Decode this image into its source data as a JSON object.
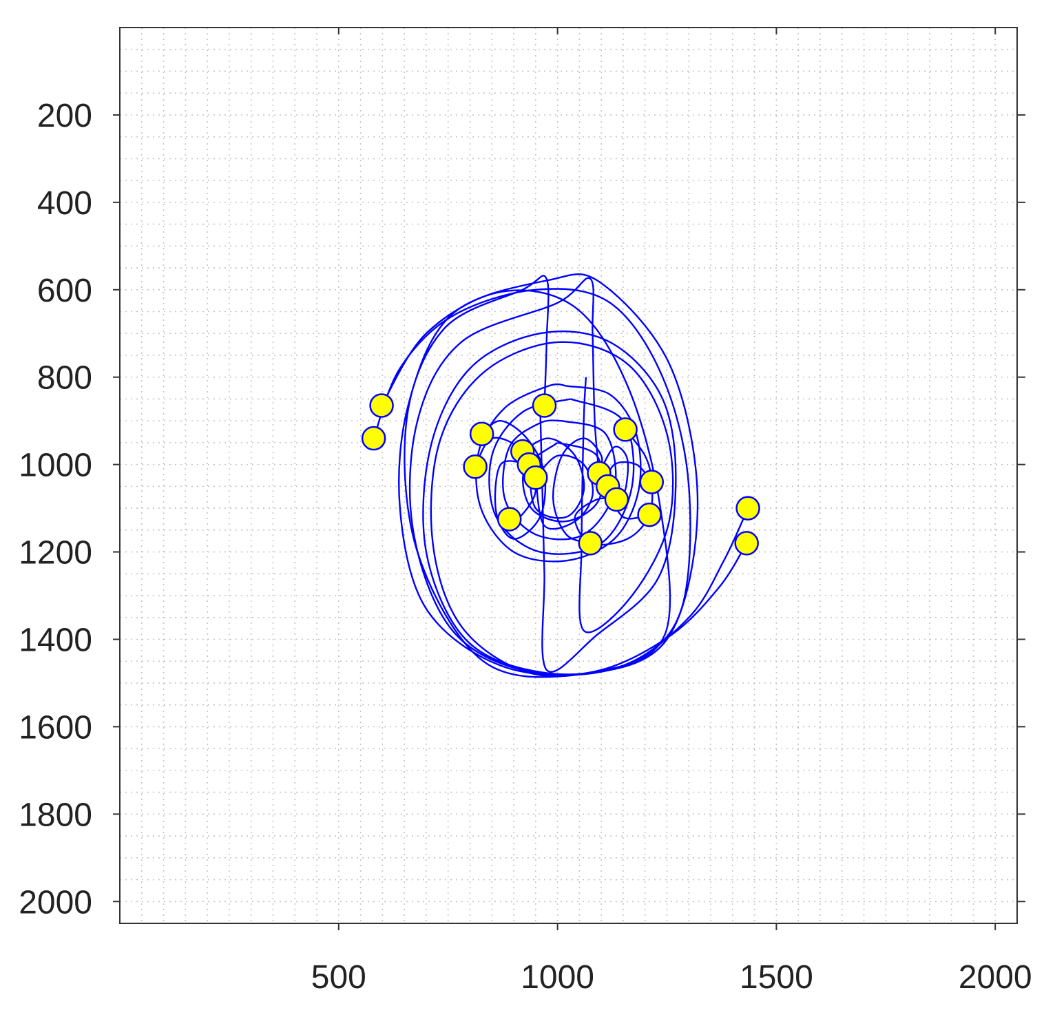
{
  "chart_data": {
    "type": "scatter",
    "title": "",
    "xlabel": "",
    "ylabel": "",
    "xlim": [
      0,
      2050
    ],
    "ylim": [
      2050,
      0
    ],
    "y_inverted": true,
    "grid": "dotted",
    "grid_step": 50,
    "xticks": [
      500,
      1000,
      1500,
      2000
    ],
    "yticks": [
      200,
      400,
      600,
      800,
      1000,
      1200,
      1400,
      1600,
      1800,
      2000
    ],
    "colors": {
      "particle_fill": "#ffff00",
      "particle_edge": "#0000ff",
      "trail": "#0000ff"
    },
    "points": [
      {
        "x": 598,
        "y": 865
      },
      {
        "x": 580,
        "y": 940
      },
      {
        "x": 827,
        "y": 930
      },
      {
        "x": 812,
        "y": 1005
      },
      {
        "x": 970,
        "y": 865
      },
      {
        "x": 1155,
        "y": 920
      },
      {
        "x": 920,
        "y": 970
      },
      {
        "x": 935,
        "y": 1000
      },
      {
        "x": 950,
        "y": 1030
      },
      {
        "x": 1095,
        "y": 1020
      },
      {
        "x": 1115,
        "y": 1050
      },
      {
        "x": 1135,
        "y": 1080
      },
      {
        "x": 1215,
        "y": 1040
      },
      {
        "x": 1210,
        "y": 1115
      },
      {
        "x": 890,
        "y": 1125
      },
      {
        "x": 1075,
        "y": 1180
      },
      {
        "x": 1435,
        "y": 1100
      },
      {
        "x": 1432,
        "y": 1180
      }
    ],
    "trajectories": [
      [
        [
          598,
          865
        ],
        [
          700,
          700
        ],
        [
          870,
          605
        ],
        [
          1040,
          640
        ],
        [
          1160,
          820
        ],
        [
          1235,
          1100
        ],
        [
          1245,
          1390
        ],
        [
          1080,
          1475
        ],
        [
          870,
          1460
        ],
        [
          700,
          1330
        ],
        [
          640,
          1100
        ],
        [
          660,
          860
        ],
        [
          760,
          655
        ],
        [
          980,
          578
        ],
        [
          1100,
          585
        ],
        [
          1260,
          780
        ],
        [
          1320,
          1100
        ],
        [
          1250,
          1400
        ],
        [
          1050,
          1480
        ],
        [
          830,
          1450
        ],
        [
          680,
          1200
        ],
        [
          655,
          900
        ],
        [
          740,
          690
        ],
        [
          920,
          600
        ],
        [
          975,
          575
        ],
        [
          975,
          720
        ],
        [
          970,
          865
        ]
      ],
      [
        [
          580,
          940
        ],
        [
          640,
          780
        ],
        [
          760,
          660
        ],
        [
          950,
          600
        ],
        [
          1120,
          630
        ],
        [
          1240,
          800
        ],
        [
          1300,
          1050
        ],
        [
          1280,
          1340
        ],
        [
          1150,
          1460
        ],
        [
          940,
          1475
        ],
        [
          760,
          1380
        ],
        [
          670,
          1150
        ],
        [
          680,
          900
        ],
        [
          780,
          720
        ],
        [
          1000,
          630
        ],
        [
          1075,
          575
        ],
        [
          1080,
          700
        ],
        [
          1085,
          900
        ],
        [
          1095,
          1020
        ]
      ],
      [
        [
          1435,
          1100
        ],
        [
          1380,
          1220
        ],
        [
          1300,
          1350
        ],
        [
          1150,
          1460
        ],
        [
          960,
          1475
        ],
        [
          790,
          1400
        ],
        [
          700,
          1200
        ],
        [
          710,
          960
        ],
        [
          800,
          780
        ],
        [
          960,
          700
        ],
        [
          1120,
          720
        ],
        [
          1240,
          850
        ],
        [
          1270,
          1050
        ],
        [
          1230,
          1260
        ],
        [
          1090,
          1390
        ],
        [
          975,
          1470
        ],
        [
          970,
          1250
        ],
        [
          965,
          1050
        ],
        [
          960,
          860
        ]
      ],
      [
        [
          1432,
          1180
        ],
        [
          1370,
          1280
        ],
        [
          1260,
          1390
        ],
        [
          1100,
          1470
        ],
        [
          930,
          1475
        ],
        [
          780,
          1370
        ],
        [
          715,
          1180
        ],
        [
          730,
          950
        ],
        [
          830,
          790
        ],
        [
          1000,
          720
        ],
        [
          1160,
          770
        ],
        [
          1250,
          930
        ],
        [
          1255,
          1130
        ],
        [
          1170,
          1300
        ],
        [
          1060,
          1380
        ],
        [
          1055,
          1180
        ],
        [
          1060,
          900
        ],
        [
          1065,
          800
        ]
      ],
      [
        [
          1020,
          820
        ],
        [
          1120,
          840
        ],
        [
          1180,
          930
        ],
        [
          1185,
          1060
        ],
        [
          1130,
          1170
        ],
        [
          1020,
          1220
        ],
        [
          900,
          1200
        ],
        [
          825,
          1100
        ],
        [
          820,
          970
        ],
        [
          880,
          870
        ],
        [
          980,
          820
        ],
        [
          1020,
          820
        ]
      ],
      [
        [
          1030,
          850
        ],
        [
          1150,
          900
        ],
        [
          1170,
          1050
        ],
        [
          1100,
          1180
        ],
        [
          960,
          1200
        ],
        [
          860,
          1120
        ],
        [
          850,
          980
        ],
        [
          920,
          880
        ],
        [
          1030,
          850
        ]
      ],
      [
        [
          1010,
          900
        ],
        [
          1110,
          930
        ],
        [
          1130,
          1060
        ],
        [
          1060,
          1160
        ],
        [
          950,
          1160
        ],
        [
          880,
          1080
        ],
        [
          890,
          960
        ],
        [
          960,
          905
        ],
        [
          1010,
          900
        ]
      ],
      [
        [
          1000,
          950
        ],
        [
          1090,
          980
        ],
        [
          1095,
          1080
        ],
        [
          1020,
          1130
        ],
        [
          940,
          1100
        ],
        [
          925,
          1010
        ],
        [
          1000,
          950
        ]
      ],
      [
        [
          827,
          930
        ],
        [
          870,
          900
        ],
        [
          930,
          940
        ],
        [
          970,
          1020
        ],
        [
          960,
          1120
        ],
        [
          900,
          1170
        ],
        [
          860,
          1110
        ],
        [
          870,
          1000
        ],
        [
          935,
          1000
        ]
      ],
      [
        [
          812,
          1005
        ],
        [
          850,
          940
        ],
        [
          920,
          970
        ],
        [
          950,
          1060
        ],
        [
          905,
          1130
        ],
        [
          890,
          1125
        ]
      ],
      [
        [
          1155,
          920
        ],
        [
          1200,
          980
        ],
        [
          1215,
          1040
        ],
        [
          1210,
          1115
        ],
        [
          1160,
          1170
        ],
        [
          1075,
          1180
        ],
        [
          1040,
          1120
        ],
        [
          1090,
          1080
        ],
        [
          1135,
          1080
        ]
      ],
      [
        [
          1215,
          1040
        ],
        [
          1180,
          1000
        ],
        [
          1130,
          1000
        ],
        [
          1115,
          1050
        ],
        [
          1150,
          1120
        ],
        [
          1210,
          1115
        ]
      ],
      [
        [
          920,
          970
        ],
        [
          980,
          940
        ],
        [
          1040,
          980
        ],
        [
          1060,
          1060
        ],
        [
          1020,
          1120
        ],
        [
          950,
          1100
        ],
        [
          935,
          1000
        ]
      ],
      [
        [
          950,
          1030
        ],
        [
          1000,
          980
        ],
        [
          1060,
          1000
        ],
        [
          1080,
          1070
        ],
        [
          1040,
          1130
        ],
        [
          970,
          1140
        ],
        [
          950,
          1030
        ]
      ],
      [
        [
          1095,
          1020
        ],
        [
          1130,
          960
        ],
        [
          1160,
          990
        ],
        [
          1150,
          1070
        ],
        [
          1115,
          1050
        ]
      ],
      [
        [
          1075,
          1180
        ],
        [
          1020,
          1160
        ],
        [
          990,
          1080
        ],
        [
          1010,
          980
        ],
        [
          1060,
          940
        ],
        [
          1100,
          980
        ],
        [
          1095,
          1020
        ]
      ]
    ]
  }
}
